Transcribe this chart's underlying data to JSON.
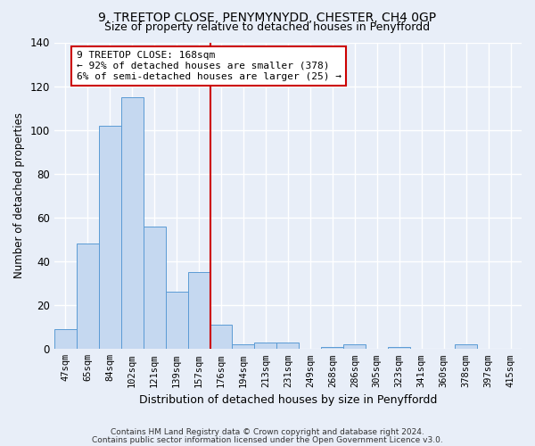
{
  "title1": "9, TREETOP CLOSE, PENYMYNYDD, CHESTER, CH4 0GP",
  "title2": "Size of property relative to detached houses in Penyffordd",
  "xlabel": "Distribution of detached houses by size in Penyffordd",
  "ylabel": "Number of detached properties",
  "footer1": "Contains HM Land Registry data © Crown copyright and database right 2024.",
  "footer2": "Contains public sector information licensed under the Open Government Licence v3.0.",
  "categories": [
    "47sqm",
    "65sqm",
    "84sqm",
    "102sqm",
    "121sqm",
    "139sqm",
    "157sqm",
    "176sqm",
    "194sqm",
    "213sqm",
    "231sqm",
    "249sqm",
    "268sqm",
    "286sqm",
    "305sqm",
    "323sqm",
    "341sqm",
    "360sqm",
    "378sqm",
    "397sqm",
    "415sqm"
  ],
  "values": [
    9,
    48,
    102,
    115,
    56,
    26,
    35,
    11,
    2,
    3,
    3,
    0,
    1,
    2,
    0,
    1,
    0,
    0,
    2,
    0,
    0
  ],
  "bar_color": "#c5d8f0",
  "bar_edge_color": "#5b9bd5",
  "vline_x_index": 7,
  "vline_color": "#cc0000",
  "annotation_title": "9 TREETOP CLOSE: 168sqm",
  "annotation_line1": "← 92% of detached houses are smaller (378)",
  "annotation_line2": "6% of semi-detached houses are larger (25) →",
  "annotation_box_color": "#ffffff",
  "annotation_border_color": "#cc0000",
  "ylim": [
    0,
    140
  ],
  "yticks": [
    0,
    20,
    40,
    60,
    80,
    100,
    120,
    140
  ],
  "background_color": "#e8eef8",
  "grid_color": "#ffffff",
  "title_fontsize": 10,
  "subtitle_fontsize": 9
}
